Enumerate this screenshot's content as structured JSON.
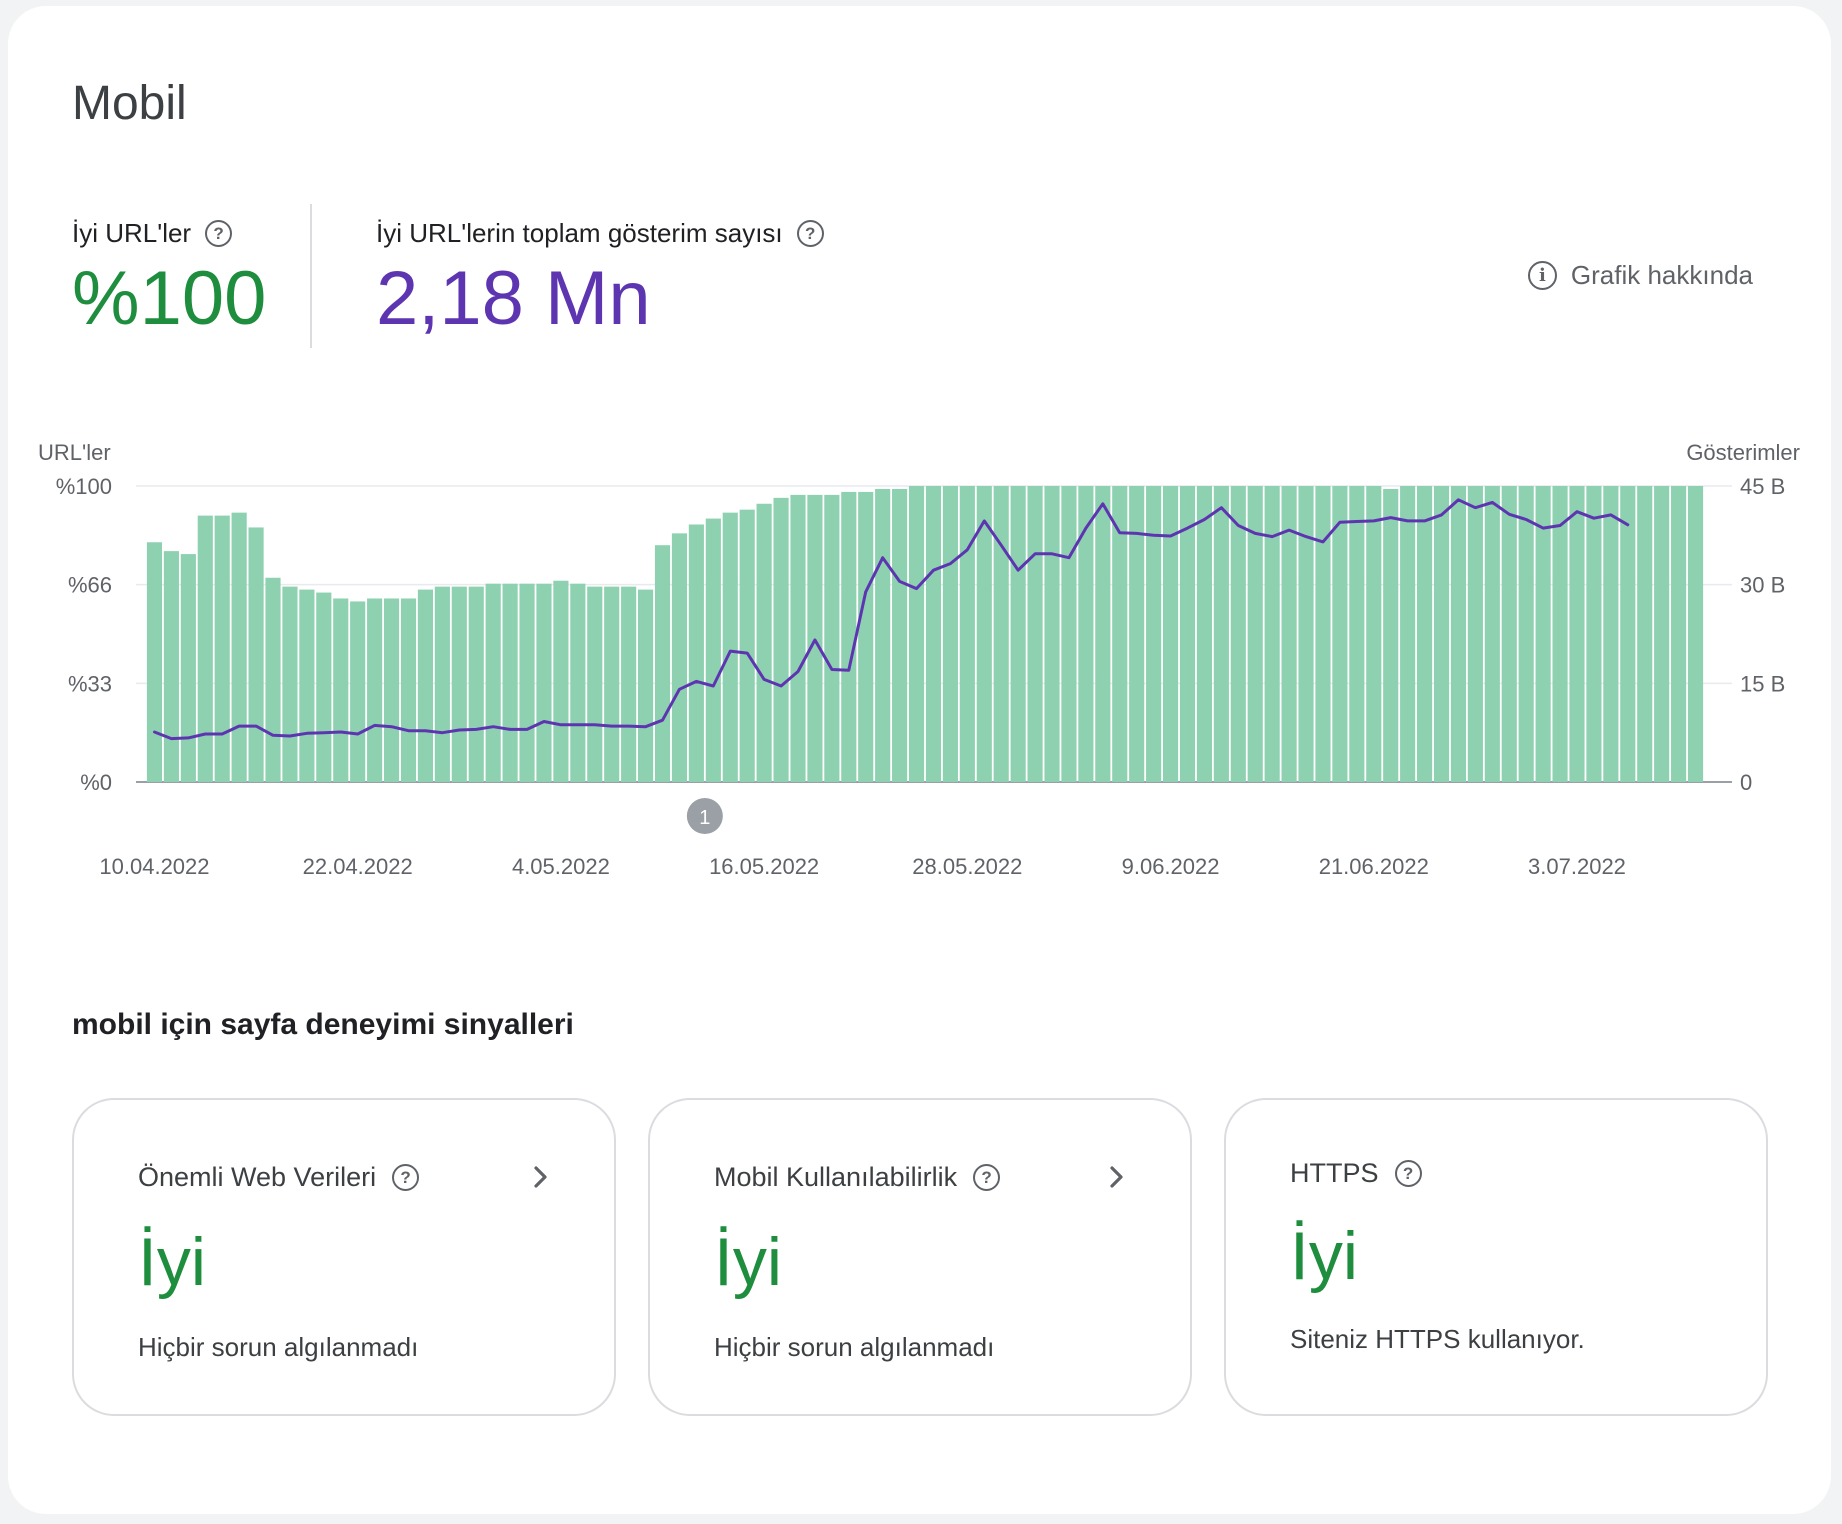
{
  "title": "Mobil",
  "metrics": {
    "good_urls": {
      "label": "İyi URL'ler",
      "value": "%100",
      "help_icon": "help-circle-icon"
    },
    "impressions": {
      "label": "İyi URL'lerin toplam gösterim sayısı",
      "value": "2,18 Mn",
      "help_icon": "help-circle-icon"
    }
  },
  "about_chart": {
    "label": "Grafik hakkında",
    "icon": "info-icon"
  },
  "colors": {
    "bar": "#8ed1b0",
    "line": "#5e35b1",
    "good": "#1e8e3e",
    "marker": "#9aa0a6"
  },
  "chart_data": {
    "type": "bar",
    "yleft_title": "URL'ler",
    "yright_title": "Gösterimler",
    "yleft_ticks": [
      "%100",
      "%66",
      "%33",
      "%0"
    ],
    "yright_ticks": [
      "45 B",
      "30 B",
      "15 B",
      "0"
    ],
    "yleft_range": [
      0,
      100
    ],
    "yright_range": [
      0,
      45
    ],
    "x_tick_labels": [
      "10.04.2022",
      "22.04.2022",
      "4.05.2022",
      "16.05.2022",
      "28.05.2022",
      "9.06.2022",
      "21.06.2022",
      "3.07.2022"
    ],
    "x_tick_indices": [
      0,
      12,
      24,
      36,
      48,
      60,
      72,
      84
    ],
    "annotation": {
      "label": "1",
      "index": 33
    },
    "series": [
      {
        "name": "URL'ler",
        "type": "bar",
        "axis": "left",
        "values": [
          81,
          78,
          77,
          90,
          90,
          91,
          86,
          69,
          66,
          65,
          64,
          62,
          61,
          62,
          62,
          62,
          65,
          66,
          66,
          66,
          67,
          67,
          67,
          67,
          68,
          67,
          66,
          66,
          66,
          65,
          80,
          84,
          87,
          89,
          91,
          92,
          94,
          96,
          97,
          97,
          97,
          98,
          98,
          99,
          99,
          100,
          100,
          100,
          100,
          100,
          100,
          100,
          100,
          100,
          100,
          100,
          100,
          100,
          100,
          100,
          100,
          100,
          100,
          100,
          100,
          100,
          100,
          100,
          100,
          100,
          100,
          100,
          100,
          99,
          100,
          100,
          100,
          100,
          100,
          100,
          100,
          100,
          100,
          100,
          100,
          100,
          100,
          100,
          100,
          100,
          100,
          100
        ]
      },
      {
        "name": "Gösterimler",
        "type": "line",
        "axis": "right",
        "values": [
          7.6,
          6.6,
          6.7,
          7.3,
          7.3,
          8.5,
          8.5,
          7.1,
          7.0,
          7.4,
          7.5,
          7.6,
          7.3,
          8.6,
          8.4,
          7.8,
          7.8,
          7.5,
          7.9,
          8.0,
          8.4,
          8.0,
          8.0,
          9.2,
          8.7,
          8.7,
          8.7,
          8.5,
          8.5,
          8.4,
          9.4,
          14.1,
          15.3,
          14.6,
          19.9,
          19.6,
          15.6,
          14.6,
          16.8,
          21.6,
          17.1,
          17.0,
          28.9,
          34.1,
          30.5,
          29.4,
          32.2,
          33.2,
          35.3,
          39.7,
          36.0,
          32.2,
          34.7,
          34.7,
          34.1,
          38.6,
          42.3,
          37.9,
          37.8,
          37.5,
          37.4,
          38.6,
          39.9,
          41.7,
          39.0,
          37.8,
          37.3,
          38.3,
          37.3,
          36.5,
          39.5,
          39.6,
          39.7,
          40.2,
          39.7,
          39.7,
          40.6,
          42.9,
          41.7,
          42.5,
          40.7,
          39.9,
          38.6,
          39.0,
          41.1,
          40.1,
          40.6,
          39.1
        ]
      }
    ]
  },
  "signals": {
    "title": "mobil için sayfa deneyimi sinyalleri",
    "cards": [
      {
        "title": "Önemli Web Verileri",
        "status": "İyi",
        "description": "Hiçbir sorun algılanmadı",
        "has_chevron": true
      },
      {
        "title": "Mobil Kullanılabilirlik",
        "status": "İyi",
        "description": "Hiçbir sorun algılanmadı",
        "has_chevron": true
      },
      {
        "title": "HTTPS",
        "status": "İyi",
        "description": "Siteniz HTTPS kullanıyor.",
        "has_chevron": false
      }
    ]
  }
}
